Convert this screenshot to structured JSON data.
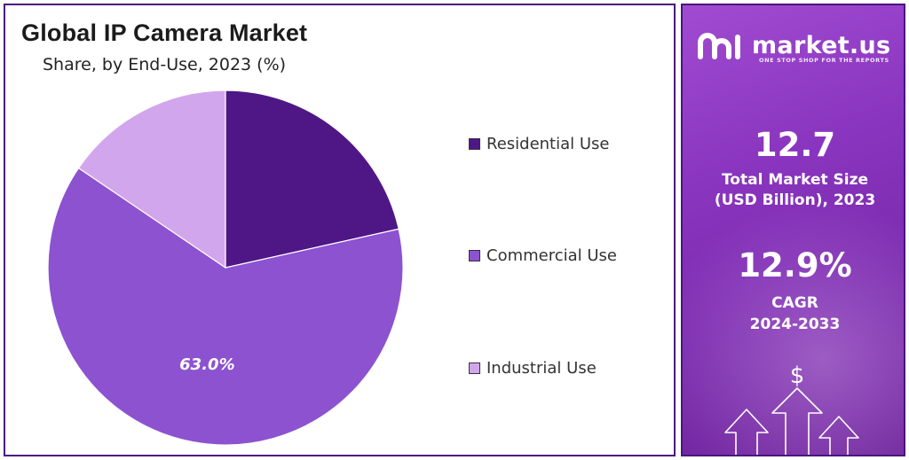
{
  "header": {
    "title": "Global IP Camera Market",
    "subtitle": "Share, by End-Use, 2023 (%)"
  },
  "chart_data": {
    "type": "pie",
    "title": "Global IP Camera Market",
    "subtitle": "Share, by End-Use, 2023 (%)",
    "categories": [
      "Residential Use",
      "Commercial Use",
      "Industrial Use"
    ],
    "values": [
      21.5,
      63.0,
      15.5
    ],
    "data_labels": [
      "",
      "63.0%",
      ""
    ],
    "colors": [
      "#4f1786",
      "#8c52d0",
      "#d2a6ec"
    ],
    "legend_position": "right"
  },
  "legend": {
    "items": [
      {
        "label": "Residential Use",
        "color": "#4f1786"
      },
      {
        "label": "Commercial Use",
        "color": "#8c52d0"
      },
      {
        "label": "Industrial Use",
        "color": "#d2a6ec"
      }
    ]
  },
  "sidebar": {
    "brand": "market.us",
    "tagline": "ONE STOP SHOP FOR THE REPORTS",
    "market_size_value": "12.7",
    "market_size_label_line1": "Total Market Size",
    "market_size_label_line2": "(USD Billion), 2023",
    "cagr_value": "12.9%",
    "cagr_label_line1": "CAGR",
    "cagr_label_line2": "2024-2033",
    "dollar_symbol": "$"
  },
  "colors": {
    "border": "#4a1480",
    "panel_gradient_top": "#a04bd1",
    "panel_gradient_bottom": "#6c2299"
  },
  "icons": [
    "market-us-logo-icon",
    "dollar-icon",
    "up-arrow-icon"
  ]
}
